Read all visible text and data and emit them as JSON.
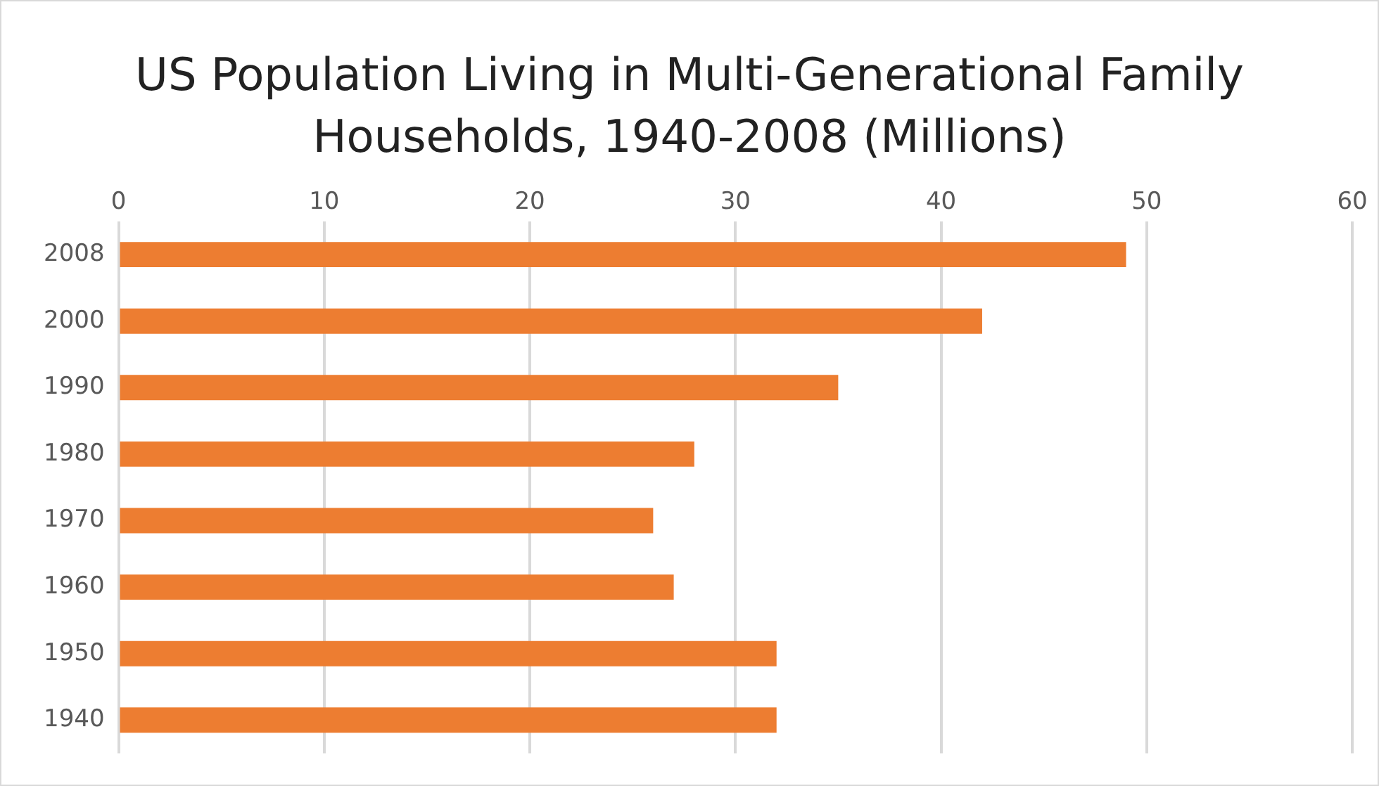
{
  "chart_data": {
    "type": "bar",
    "orientation": "horizontal",
    "title": "US Population Living in Multi-Generational Family Households, 1940-2008 (Millions)",
    "categories": [
      "2008",
      "2000",
      "1990",
      "1980",
      "1970",
      "1960",
      "1950",
      "1940"
    ],
    "values": [
      49,
      42,
      35,
      28,
      26,
      27,
      32,
      32
    ],
    "color": "#ed7d31",
    "xlim": [
      0,
      60
    ],
    "xticks": [
      0,
      10,
      20,
      30,
      40,
      50,
      60
    ],
    "grid": "x",
    "legend": false
  }
}
